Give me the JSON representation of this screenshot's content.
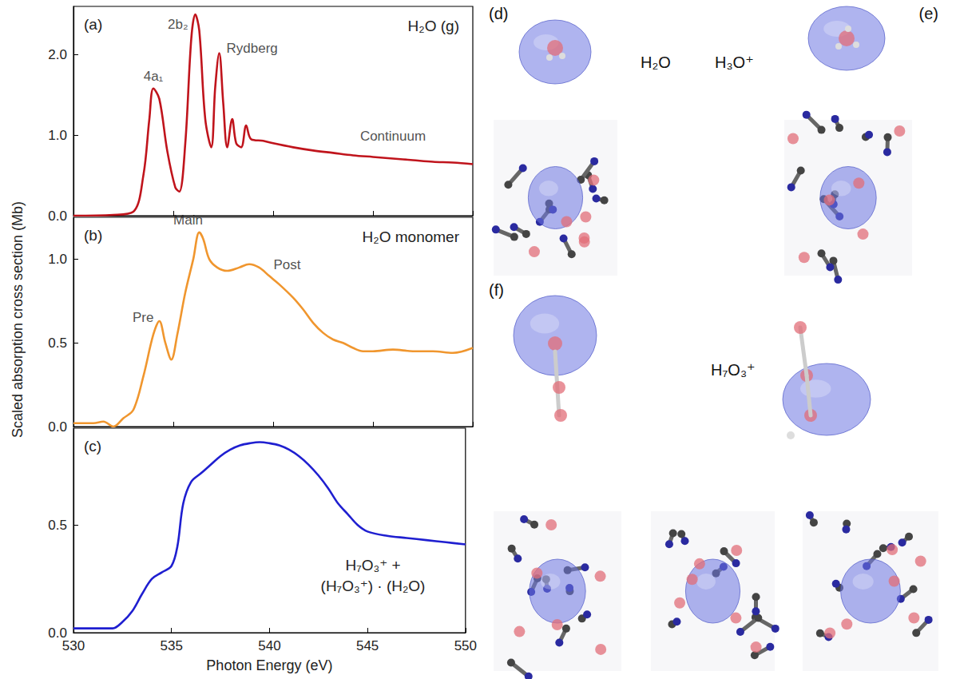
{
  "chart_data": [
    {
      "type": "line",
      "label": "(a)",
      "title": "H₂O (g)",
      "color": "#c0141c",
      "tick_labels": "y",
      "x": [
        530,
        532,
        533,
        533.5,
        533.8,
        534.0,
        534.3,
        534.7,
        535.1,
        535.3,
        535.6,
        535.9,
        536.1,
        536.3,
        536.6,
        536.9,
        537.1,
        537.3,
        537.5,
        537.7,
        537.95,
        538.15,
        538.4,
        538.65,
        538.9,
        539.5,
        540,
        541,
        542,
        543,
        544,
        545,
        546,
        547,
        548,
        549,
        550
      ],
      "values": [
        0.0,
        0.01,
        0.05,
        0.5,
        1.2,
        1.58,
        1.45,
        0.8,
        0.35,
        0.3,
        0.9,
        2.2,
        2.5,
        2.3,
        1.2,
        0.85,
        1.6,
        2.02,
        1.4,
        0.85,
        1.2,
        0.9,
        0.85,
        1.12,
        0.95,
        0.93,
        0.9,
        0.85,
        0.81,
        0.78,
        0.75,
        0.73,
        0.71,
        0.69,
        0.67,
        0.66,
        0.64
      ],
      "annotations": [
        {
          "text": "4a₁",
          "x": 534.0,
          "y": 1.58
        },
        {
          "text": "2b₂",
          "x": 536.1,
          "y": 2.5
        },
        {
          "text": "Rydberg",
          "x": 537.3,
          "y": 2.02
        },
        {
          "text": "Continuum",
          "x": 546,
          "y": 0.71
        }
      ],
      "xlim": [
        530,
        550
      ],
      "xticks": [
        530,
        535,
        540,
        545,
        550
      ],
      "ylim": [
        0,
        2.6
      ],
      "yticks": [
        {
          "value": 0,
          "label": "0.0"
        },
        {
          "value": 1,
          "label": "1.0"
        },
        {
          "value": 2,
          "label": "2.0"
        }
      ]
    },
    {
      "type": "line",
      "label": "(b)",
      "title": "H₂O monomer",
      "color": "#f0962e",
      "tick_labels": "y",
      "x": [
        530,
        531,
        531.5,
        532,
        532.5,
        533,
        533.5,
        534,
        534.3,
        534.6,
        534.9,
        535.2,
        535.6,
        536,
        536.3,
        536.5,
        536.8,
        537.2,
        537.7,
        538.3,
        538.8,
        539.3,
        539.8,
        540.3,
        541,
        541.5,
        542,
        542.5,
        543,
        543.5,
        544,
        544.5,
        545,
        546,
        547,
        548,
        549,
        550
      ],
      "values": [
        0.02,
        0.02,
        0.03,
        0.0,
        0.05,
        0.1,
        0.3,
        0.55,
        0.63,
        0.5,
        0.4,
        0.55,
        0.8,
        1.0,
        1.16,
        1.12,
        1.0,
        0.95,
        0.93,
        0.95,
        0.97,
        0.95,
        0.9,
        0.85,
        0.77,
        0.7,
        0.62,
        0.56,
        0.52,
        0.5,
        0.47,
        0.45,
        0.45,
        0.46,
        0.45,
        0.45,
        0.44,
        0.47
      ],
      "annotations": [
        {
          "text": "Pre",
          "x": 534.3,
          "y": 0.63
        },
        {
          "text": "Main",
          "x": 536.3,
          "y": 1.16
        },
        {
          "text": "Post",
          "x": 539.5,
          "y": 0.93
        }
      ],
      "xlim": [
        530,
        550
      ],
      "xticks": [
        530,
        535,
        540,
        545,
        550
      ],
      "ylim": [
        0,
        1.25
      ],
      "yticks": [
        {
          "value": 0,
          "label": "0.0"
        },
        0.5,
        {
          "value": 1,
          "label": "1.0"
        }
      ]
    },
    {
      "type": "line",
      "label": "(c)",
      "title": "H₇O₃⁺ + (H₇O₃⁺) · (H₂O)",
      "color": "#1f1fd0",
      "x": [
        530,
        531,
        532,
        532.5,
        533,
        533.5,
        534,
        534.5,
        535,
        535.3,
        535.6,
        536,
        536.5,
        537,
        537.5,
        538,
        538.5,
        539,
        539.5,
        540,
        540.5,
        541,
        541.5,
        542,
        542.5,
        543,
        543.5,
        544,
        544.5,
        545,
        546,
        547,
        548,
        549,
        550
      ],
      "values": [
        0.02,
        0.02,
        0.02,
        0.05,
        0.1,
        0.18,
        0.25,
        0.28,
        0.31,
        0.4,
        0.6,
        0.7,
        0.74,
        0.78,
        0.82,
        0.85,
        0.87,
        0.88,
        0.885,
        0.88,
        0.87,
        0.85,
        0.82,
        0.78,
        0.73,
        0.67,
        0.6,
        0.55,
        0.5,
        0.47,
        0.45,
        0.44,
        0.43,
        0.42,
        0.41
      ],
      "xlim": [
        530,
        550
      ],
      "xticks": [
        530,
        535,
        540,
        545,
        550
      ],
      "ylim": [
        0,
        0.95
      ],
      "yticks": [
        {
          "value": 0,
          "label": "0.0"
        },
        0.5
      ]
    }
  ],
  "shared": {
    "x_label": "Photon Energy (eV)",
    "y_label": "Scaled absorption cross section (Mb)"
  },
  "structures": [
    {
      "label": "(d)",
      "species": "H₂O"
    },
    {
      "label": "(e)",
      "species": "H₃O⁺"
    },
    {
      "label": "(f)",
      "species": "H₇O₃⁺"
    }
  ]
}
